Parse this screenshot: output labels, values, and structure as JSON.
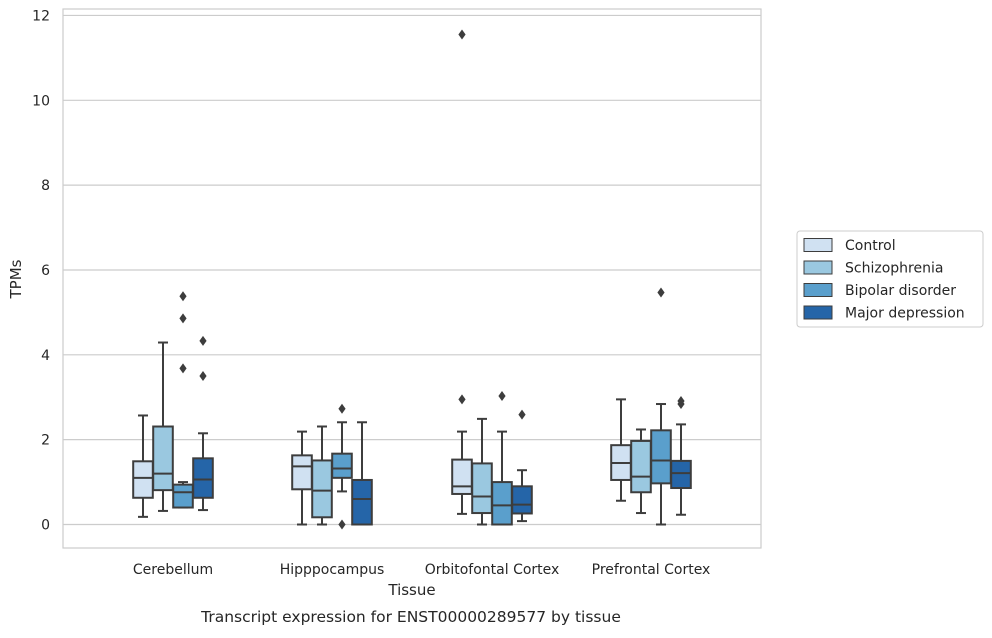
{
  "chart_data": {
    "type": "boxplot",
    "title": "",
    "caption": "Transcript expression for ENST00000289577 by tissue",
    "xlabel": "Tissue",
    "ylabel": "TPMs",
    "ylim": [
      -0.55,
      12.2
    ],
    "yticks": [
      0,
      2,
      4,
      6,
      8,
      10,
      12
    ],
    "grid": "horizontal",
    "legend_position": "right",
    "categories": [
      "Cerebellum",
      "Hipppocampus",
      "Orbitofontal Cortex",
      "Prefrontal Cortex"
    ],
    "series": [
      {
        "name": "Control",
        "color": "#d0e1f2",
        "boxes": [
          {
            "whisker_low": 0.18,
            "q1": 0.63,
            "median": 1.1,
            "q3": 1.49,
            "whisker_high": 2.57,
            "outliers": []
          },
          {
            "whisker_low": 0.0,
            "q1": 0.83,
            "median": 1.37,
            "q3": 1.63,
            "whisker_high": 2.19,
            "outliers": []
          },
          {
            "whisker_low": 0.25,
            "q1": 0.72,
            "median": 0.9,
            "q3": 1.53,
            "whisker_high": 2.19,
            "outliers": [
              2.95,
              11.55
            ]
          },
          {
            "whisker_low": 0.56,
            "q1": 1.05,
            "median": 1.45,
            "q3": 1.87,
            "whisker_high": 2.95,
            "outliers": []
          }
        ]
      },
      {
        "name": "Schizophrenia",
        "color": "#9ac8e0",
        "boxes": [
          {
            "whisker_low": 0.32,
            "q1": 0.81,
            "median": 1.2,
            "q3": 2.31,
            "whisker_high": 4.29,
            "outliers": []
          },
          {
            "whisker_low": 0.0,
            "q1": 0.17,
            "median": 0.8,
            "q3": 1.51,
            "whisker_high": 2.31,
            "outliers": []
          },
          {
            "whisker_low": 0.0,
            "q1": 0.27,
            "median": 0.66,
            "q3": 1.44,
            "whisker_high": 2.49,
            "outliers": []
          },
          {
            "whisker_low": 0.27,
            "q1": 0.76,
            "median": 1.13,
            "q3": 1.97,
            "whisker_high": 2.24,
            "outliers": []
          }
        ]
      },
      {
        "name": "Bipolar disorder",
        "color": "#5a9fcc",
        "boxes": [
          {
            "whisker_low": 0.4,
            "q1": 0.4,
            "median": 0.76,
            "q3": 0.94,
            "whisker_high": 1.0,
            "outliers": [
              3.68,
              4.86,
              5.38
            ]
          },
          {
            "whisker_low": 0.78,
            "q1": 1.1,
            "median": 1.32,
            "q3": 1.67,
            "whisker_high": 2.41,
            "outliers": [
              2.73,
              0.0
            ]
          },
          {
            "whisker_low": 0.0,
            "q1": 0.0,
            "median": 0.45,
            "q3": 1.0,
            "whisker_high": 2.19,
            "outliers": [
              3.03
            ]
          },
          {
            "whisker_low": 0.0,
            "q1": 0.97,
            "median": 1.51,
            "q3": 2.22,
            "whisker_high": 2.84,
            "outliers": [
              5.47
            ]
          }
        ]
      },
      {
        "name": "Major depression",
        "color": "#2565a8",
        "boxes": [
          {
            "whisker_low": 0.34,
            "q1": 0.63,
            "median": 1.06,
            "q3": 1.56,
            "whisker_high": 2.15,
            "outliers": [
              3.5,
              4.33
            ]
          },
          {
            "whisker_low": 0.0,
            "q1": 0.0,
            "median": 0.6,
            "q3": 1.05,
            "whisker_high": 2.41,
            "outliers": []
          },
          {
            "whisker_low": 0.08,
            "q1": 0.26,
            "median": 0.47,
            "q3": 0.9,
            "whisker_high": 1.28,
            "outliers": [
              2.59
            ]
          },
          {
            "whisker_low": 0.23,
            "q1": 0.86,
            "median": 1.21,
            "q3": 1.5,
            "whisker_high": 2.36,
            "outliers": [
              2.84,
              2.91
            ]
          }
        ]
      }
    ]
  }
}
